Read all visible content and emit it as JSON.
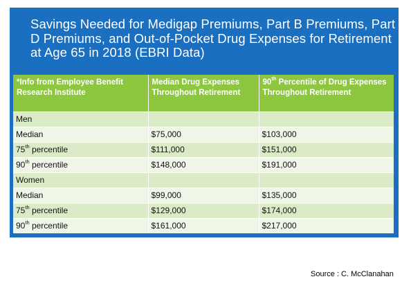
{
  "slide": {
    "title": "Savings Needed for Medigap Premiums, Part B Premiums, Part D Premiums, and Out-of-Pocket Drug Expenses for Retirement at Age 65 in 2018 (EBRI Data)"
  },
  "table": {
    "headers": [
      "*Info from Employee Benefit Research Institute",
      "Median Drug Expenses Throughout Retirement",
      "90th Percentile of Drug Expenses Throughout Retirement"
    ],
    "groups": [
      {
        "label": "Men",
        "rows": [
          {
            "label_main": "Median",
            "label_sup": "",
            "label_rest": "",
            "median": "$75,000",
            "p90": "$103,000"
          },
          {
            "label_main": "75",
            "label_sup": "th",
            "label_rest": " percentile",
            "median": "$111,000",
            "p90": "$151,000"
          },
          {
            "label_main": "90",
            "label_sup": "th",
            "label_rest": " percentile",
            "median": "$148,000",
            "p90": "$191,000"
          }
        ]
      },
      {
        "label": "Women",
        "rows": [
          {
            "label_main": "Median",
            "label_sup": "",
            "label_rest": "",
            "median": "$99,000",
            "p90": "$135,000"
          },
          {
            "label_main": "75",
            "label_sup": "th",
            "label_rest": " percentile",
            "median": "$129,000",
            "p90": "$174,000"
          },
          {
            "label_main": "90",
            "label_sup": "th",
            "label_rest": " percentile",
            "median": "$161,000",
            "p90": "$217,000"
          }
        ]
      }
    ]
  },
  "source": "Source : C. McClanahan"
}
